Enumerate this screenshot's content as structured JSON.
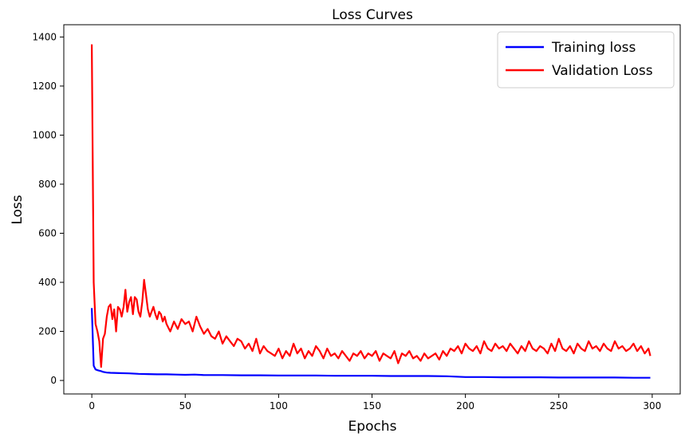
{
  "chart_data": {
    "type": "line",
    "title": "Loss Curves",
    "xlabel": "Epochs",
    "ylabel": "Loss",
    "xlim": [
      -15,
      315
    ],
    "ylim": [
      -55,
      1450
    ],
    "xticks": [
      0,
      50,
      100,
      150,
      200,
      250,
      300
    ],
    "yticks": [
      0,
      200,
      400,
      600,
      800,
      1000,
      1200,
      1400
    ],
    "grid": false,
    "legend_position": "top-right",
    "series": [
      {
        "name": "Training loss",
        "color": "#0000ff",
        "x": [
          0,
          1,
          2,
          3,
          4,
          5,
          6,
          8,
          10,
          15,
          20,
          25,
          30,
          35,
          40,
          45,
          50,
          55,
          60,
          70,
          80,
          90,
          100,
          110,
          120,
          130,
          140,
          150,
          160,
          170,
          180,
          190,
          200,
          210,
          220,
          230,
          240,
          250,
          260,
          270,
          280,
          290,
          299
        ],
        "y": [
          295,
          60,
          45,
          42,
          40,
          38,
          35,
          32,
          31,
          30,
          29,
          27,
          26,
          25,
          25,
          24,
          23,
          24,
          22,
          22,
          21,
          21,
          20,
          20,
          20,
          19,
          19,
          19,
          18,
          18,
          18,
          17,
          14,
          14,
          13,
          13,
          13,
          12,
          12,
          12,
          12,
          11,
          11
        ]
      },
      {
        "name": "Validation Loss",
        "color": "#ff0000",
        "x": [
          0,
          1,
          2,
          3,
          4,
          5,
          6,
          7,
          8,
          9,
          10,
          11,
          12,
          13,
          14,
          15,
          16,
          17,
          18,
          19,
          20,
          21,
          22,
          23,
          24,
          25,
          26,
          27,
          28,
          29,
          30,
          31,
          32,
          33,
          34,
          35,
          36,
          37,
          38,
          39,
          40,
          42,
          44,
          46,
          48,
          50,
          52,
          54,
          56,
          58,
          60,
          62,
          64,
          66,
          68,
          70,
          72,
          74,
          76,
          78,
          80,
          82,
          84,
          86,
          88,
          90,
          92,
          94,
          96,
          98,
          100,
          102,
          104,
          106,
          108,
          110,
          112,
          114,
          116,
          118,
          120,
          122,
          124,
          126,
          128,
          130,
          132,
          134,
          136,
          138,
          140,
          142,
          144,
          146,
          148,
          150,
          152,
          154,
          156,
          158,
          160,
          162,
          164,
          166,
          168,
          170,
          172,
          174,
          176,
          178,
          180,
          182,
          184,
          186,
          188,
          190,
          192,
          194,
          196,
          198,
          200,
          202,
          204,
          206,
          208,
          210,
          212,
          214,
          216,
          218,
          220,
          222,
          224,
          226,
          228,
          230,
          232,
          234,
          236,
          238,
          240,
          242,
          244,
          246,
          248,
          250,
          252,
          254,
          256,
          258,
          260,
          262,
          264,
          266,
          268,
          270,
          272,
          274,
          276,
          278,
          280,
          282,
          284,
          286,
          288,
          290,
          292,
          294,
          296,
          298,
          299
        ],
        "y": [
          1370,
          400,
          230,
          200,
          160,
          55,
          170,
          190,
          260,
          300,
          310,
          250,
          290,
          200,
          300,
          290,
          260,
          300,
          370,
          280,
          320,
          340,
          270,
          340,
          330,
          280,
          260,
          320,
          410,
          350,
          290,
          260,
          280,
          300,
          270,
          250,
          280,
          270,
          240,
          260,
          230,
          200,
          240,
          210,
          250,
          230,
          240,
          200,
          260,
          220,
          190,
          210,
          180,
          170,
          200,
          150,
          180,
          160,
          140,
          170,
          160,
          130,
          150,
          120,
          170,
          110,
          140,
          120,
          110,
          100,
          130,
          90,
          120,
          100,
          150,
          110,
          130,
          90,
          120,
          100,
          140,
          120,
          90,
          130,
          100,
          110,
          90,
          120,
          100,
          80,
          110,
          100,
          120,
          90,
          110,
          100,
          120,
          80,
          110,
          100,
          90,
          120,
          70,
          110,
          100,
          120,
          90,
          100,
          80,
          110,
          90,
          100,
          110,
          85,
          120,
          100,
          130,
          120,
          140,
          110,
          150,
          130,
          120,
          140,
          110,
          160,
          130,
          120,
          150,
          130,
          140,
          120,
          150,
          130,
          110,
          140,
          120,
          160,
          130,
          120,
          140,
          130,
          110,
          150,
          120,
          170,
          130,
          120,
          140,
          110,
          150,
          130,
          120,
          160,
          130,
          140,
          120,
          150,
          130,
          120,
          160,
          130,
          140,
          120,
          130,
          150,
          120,
          140,
          110,
          130,
          100
        ]
      }
    ]
  }
}
